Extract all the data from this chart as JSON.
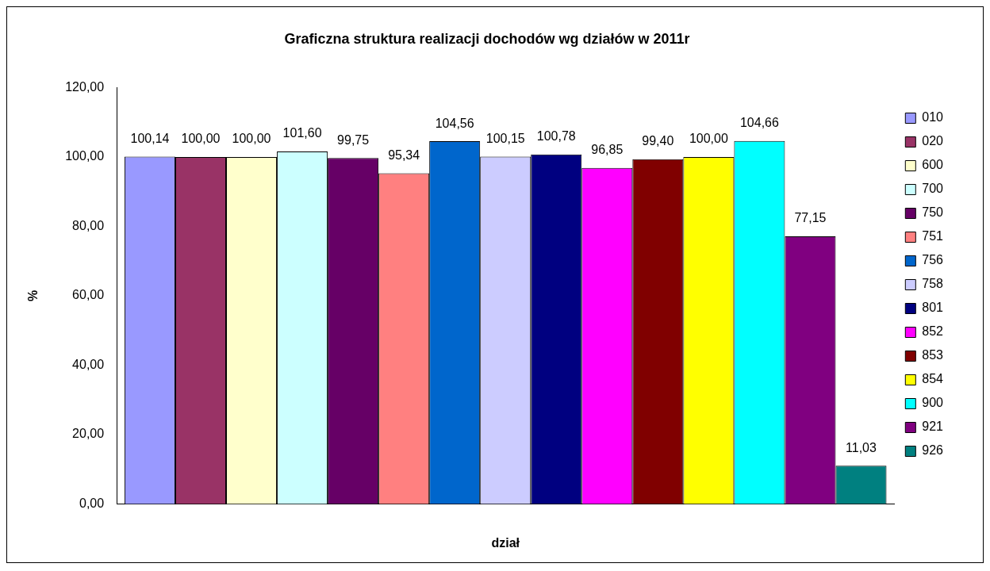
{
  "chart_data": {
    "type": "bar",
    "title": "Graficzna struktura realizacji dochodów wg działów w 2011r",
    "xlabel": "dział",
    "ylabel": "%",
    "categories": [
      null
    ],
    "ylim": [
      0,
      120
    ],
    "yticks": [
      {
        "value": 0,
        "label": "0,00"
      },
      {
        "value": 20,
        "label": "20,00"
      },
      {
        "value": 40,
        "label": "40,00"
      },
      {
        "value": 60,
        "label": "60,00"
      },
      {
        "value": 80,
        "label": "80,00"
      },
      {
        "value": 100,
        "label": "100,00"
      },
      {
        "value": 120,
        "label": "120,00"
      }
    ],
    "grid": false,
    "legend": "right",
    "series": [
      {
        "name": "010",
        "color": "#9999ff",
        "values": [
          100.14
        ],
        "value_labels": [
          "100,14"
        ]
      },
      {
        "name": "020",
        "color": "#993366",
        "values": [
          100.0
        ],
        "value_labels": [
          "100,00"
        ]
      },
      {
        "name": "600",
        "color": "#ffffcc",
        "values": [
          100.0
        ],
        "value_labels": [
          "100,00"
        ]
      },
      {
        "name": "700",
        "color": "#ccffff",
        "values": [
          101.6
        ],
        "value_labels": [
          "101,60"
        ]
      },
      {
        "name": "750",
        "color": "#660066",
        "values": [
          99.75
        ],
        "value_labels": [
          "99,75"
        ]
      },
      {
        "name": "751",
        "color": "#ff8080",
        "values": [
          95.34
        ],
        "value_labels": [
          "95,34"
        ]
      },
      {
        "name": "756",
        "color": "#0066cc",
        "values": [
          104.56
        ],
        "value_labels": [
          "104,56"
        ]
      },
      {
        "name": "758",
        "color": "#ccccff",
        "values": [
          100.15
        ],
        "value_labels": [
          "100,15"
        ]
      },
      {
        "name": "801",
        "color": "#000080",
        "values": [
          100.78
        ],
        "value_labels": [
          "100,78"
        ]
      },
      {
        "name": "852",
        "color": "#ff00ff",
        "values": [
          96.85
        ],
        "value_labels": [
          "96,85"
        ]
      },
      {
        "name": "853",
        "color": "#800000",
        "values": [
          99.4
        ],
        "value_labels": [
          "99,40"
        ]
      },
      {
        "name": "854",
        "color": "#ffff00",
        "values": [
          100.0
        ],
        "value_labels": [
          "100,00"
        ]
      },
      {
        "name": "900",
        "color": "#00ffff",
        "values": [
          104.66
        ],
        "value_labels": [
          "104,66"
        ]
      },
      {
        "name": "921",
        "color": "#800080",
        "values": [
          77.15
        ],
        "value_labels": [
          "77,15"
        ]
      },
      {
        "name": "926",
        "color": "#008080",
        "values": [
          11.03
        ],
        "value_labels": [
          "11,03"
        ]
      }
    ]
  }
}
